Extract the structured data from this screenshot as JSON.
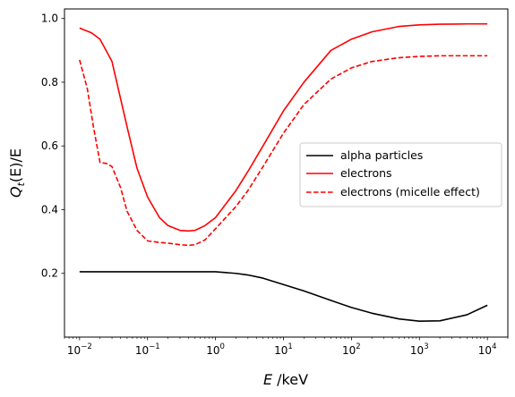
{
  "chart_data": {
    "type": "line",
    "xscale": "log",
    "xlim": [
      0.006,
      20000
    ],
    "ylim": [
      0.0,
      1.03
    ],
    "xlabel": {
      "italic": "E",
      "rest": " /keV"
    },
    "ylabel": {
      "base": "Q",
      "sub": "t",
      "rest": "(E)/E"
    },
    "x_ticks": [
      {
        "value": 0.01,
        "base": "10",
        "exp": "−2"
      },
      {
        "value": 0.1,
        "base": "10",
        "exp": "−1"
      },
      {
        "value": 1,
        "base": "10",
        "exp": "0"
      },
      {
        "value": 10,
        "base": "10",
        "exp": "1"
      },
      {
        "value": 100,
        "base": "10",
        "exp": "2"
      },
      {
        "value": 1000,
        "base": "10",
        "exp": "3"
      },
      {
        "value": 10000,
        "base": "10",
        "exp": "4"
      }
    ],
    "y_ticks": [
      {
        "value": 0.2,
        "label": "0.2"
      },
      {
        "value": 0.4,
        "label": "0.4"
      },
      {
        "value": 0.6,
        "label": "0.6"
      },
      {
        "value": 0.8,
        "label": "0.8"
      },
      {
        "value": 1.0,
        "label": "1.0"
      }
    ],
    "legend": {
      "placement": "center-right"
    },
    "series": [
      {
        "name": "alpha particles",
        "color": "#000000",
        "dash": "solid",
        "x": [
          0.01,
          0.03,
          0.1,
          0.3,
          1,
          2,
          3,
          5,
          10,
          20,
          50,
          100,
          200,
          500,
          1000,
          2000,
          5000,
          10000
        ],
        "y": [
          0.205,
          0.205,
          0.205,
          0.205,
          0.205,
          0.2,
          0.195,
          0.185,
          0.165,
          0.145,
          0.115,
          0.093,
          0.075,
          0.057,
          0.05,
          0.051,
          0.07,
          0.1
        ]
      },
      {
        "name": "electrons",
        "color": "#ff0000",
        "dash": "solid",
        "x": [
          0.01,
          0.015,
          0.02,
          0.03,
          0.05,
          0.07,
          0.1,
          0.15,
          0.2,
          0.3,
          0.4,
          0.5,
          0.7,
          1,
          2,
          3,
          5,
          10,
          20,
          50,
          100,
          200,
          500,
          1000,
          2000,
          5000,
          10000
        ],
        "y": [
          0.97,
          0.955,
          0.935,
          0.865,
          0.66,
          0.53,
          0.44,
          0.375,
          0.35,
          0.335,
          0.333,
          0.335,
          0.35,
          0.375,
          0.46,
          0.52,
          0.6,
          0.71,
          0.8,
          0.9,
          0.935,
          0.958,
          0.975,
          0.98,
          0.982,
          0.983,
          0.983
        ]
      },
      {
        "name": "electrons (micelle effect)",
        "color": "#ff0000",
        "dash": "dashed",
        "x": [
          0.01,
          0.013,
          0.016,
          0.02,
          0.025,
          0.03,
          0.04,
          0.05,
          0.07,
          0.1,
          0.15,
          0.2,
          0.3,
          0.4,
          0.5,
          0.7,
          1,
          2,
          3,
          5,
          10,
          20,
          50,
          100,
          200,
          500,
          1000,
          2000,
          5000,
          10000
        ],
        "y": [
          0.87,
          0.78,
          0.66,
          0.548,
          0.545,
          0.535,
          0.47,
          0.395,
          0.335,
          0.302,
          0.297,
          0.295,
          0.29,
          0.288,
          0.29,
          0.305,
          0.34,
          0.41,
          0.46,
          0.535,
          0.64,
          0.73,
          0.81,
          0.845,
          0.865,
          0.877,
          0.881,
          0.883,
          0.883,
          0.883
        ]
      }
    ]
  }
}
